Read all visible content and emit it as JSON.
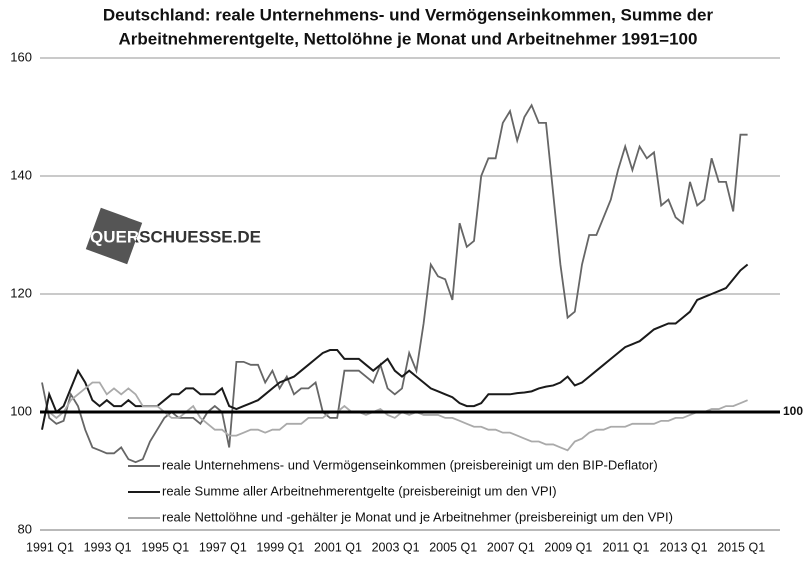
{
  "chart_data": {
    "type": "line",
    "title": [
      "Deutschland: reale Unternehmens- und Vermögenseinkommen, Summe der",
      "Arbeitnehmerentgelte, Nettolöhne je Monat und Arbeitnehmer 1991=100"
    ],
    "watermark": "QUERSCHUESSE.DE",
    "categories": [
      "1991 Q1",
      null,
      null,
      null,
      null,
      null,
      null,
      null,
      "1993 Q1",
      null,
      null,
      null,
      null,
      null,
      null,
      null,
      "1995 Q1",
      null,
      null,
      null,
      null,
      null,
      null,
      null,
      "1997 Q1",
      null,
      null,
      null,
      null,
      null,
      null,
      null,
      "1999 Q1",
      null,
      null,
      null,
      null,
      null,
      null,
      null,
      "2001 Q1",
      null,
      null,
      null,
      null,
      null,
      null,
      null,
      "2003 Q1",
      null,
      null,
      null,
      null,
      null,
      null,
      null,
      "2005 Q1",
      null,
      null,
      null,
      null,
      null,
      null,
      null,
      "2007 Q1",
      null,
      null,
      null,
      null,
      null,
      null,
      null,
      "2009 Q1",
      null,
      null,
      null,
      null,
      null,
      null,
      null,
      "2011 Q1",
      null,
      null,
      null,
      null,
      null,
      null,
      null,
      "2013 Q1",
      null,
      null,
      null,
      null,
      null,
      null,
      null,
      "2015 Q1",
      null,
      null
    ],
    "series": [
      {
        "name": "reale Unternehmens- und Vermögenseinkommen (preisbereinigt um den BIP-Deflator)",
        "color": "#666666",
        "values": [
          105,
          99,
          98,
          98.5,
          103,
          101,
          97,
          94,
          93.5,
          93,
          93,
          94,
          92,
          91.5,
          92,
          95,
          97,
          99,
          100,
          99,
          99,
          99,
          98,
          100,
          101,
          100,
          94,
          108.5,
          108.5,
          108,
          108,
          105,
          107,
          104,
          106,
          103,
          104,
          104,
          105,
          100,
          99,
          99,
          107,
          107,
          107,
          106,
          105,
          108,
          104,
          103,
          104,
          110,
          107,
          115,
          125,
          123,
          122.5,
          119,
          132,
          128,
          129,
          140,
          143,
          143,
          149,
          151,
          146,
          150,
          152,
          149,
          149,
          137,
          125,
          116,
          117,
          125,
          130,
          130,
          133,
          136,
          141,
          145,
          141,
          145,
          143,
          144,
          135,
          136,
          133,
          132,
          139,
          135,
          136,
          143,
          139,
          139,
          134,
          147,
          147
        ]
      },
      {
        "name": "reale Summe aller Arbeitnehmerentgelte (preisbereinigt um den VPI)",
        "color": "#1a1a1a",
        "values": [
          97,
          103,
          100,
          101,
          104,
          107,
          105,
          102,
          101,
          102,
          101,
          101,
          102,
          101,
          101,
          101,
          101,
          102,
          103,
          103,
          104,
          104,
          103,
          103,
          103,
          104,
          101,
          100.5,
          101,
          101.5,
          102,
          103,
          104,
          105,
          105.5,
          106,
          107,
          108,
          109,
          110,
          110.5,
          110.5,
          109,
          109,
          109,
          108,
          107,
          108,
          109,
          107,
          106,
          107,
          106,
          105,
          104,
          103.5,
          103,
          102.5,
          101.5,
          101,
          101,
          101.5,
          103,
          103,
          103,
          103,
          103.2,
          103.3,
          103.5,
          104,
          104.3,
          104.5,
          105,
          106,
          104.5,
          105,
          106,
          107,
          108,
          109,
          110,
          111,
          111.5,
          112,
          113,
          114,
          114.5,
          115,
          115,
          116,
          117,
          119,
          119.5,
          120,
          120.5,
          121,
          122.5,
          124,
          125
        ]
      },
      {
        "name": "reale Nettolöhne und -gehälter je Monat und je Arbeitnehmer (preisbereinigt um den VPI)",
        "color": "#aaaaaa",
        "values": [
          100,
          100,
          99,
          100,
          102,
          103,
          104,
          105,
          105,
          103,
          104,
          103,
          104,
          103,
          101,
          101,
          101,
          100,
          99,
          99,
          100,
          101,
          99,
          98,
          97,
          97,
          96,
          96,
          96.5,
          97,
          97,
          96.5,
          97,
          97,
          98,
          98,
          98,
          99,
          99,
          99,
          100,
          100,
          101,
          100,
          100,
          99.5,
          100,
          100.5,
          99.5,
          99,
          100,
          99.5,
          100,
          99.5,
          99.5,
          99.5,
          99,
          99,
          98.5,
          98,
          97.5,
          97.5,
          97,
          97,
          96.5,
          96.5,
          96,
          95.5,
          95,
          95,
          94.5,
          94.5,
          94,
          93.5,
          95,
          95.5,
          96.5,
          97,
          97,
          97.5,
          97.5,
          97.5,
          98,
          98,
          98,
          98,
          98.5,
          98.5,
          99,
          99,
          99.5,
          100,
          100,
          100.5,
          100.5,
          101,
          101,
          101.5,
          102
        ]
      }
    ],
    "reference_line": 100,
    "ylim": [
      80,
      160
    ],
    "yticks": [
      80,
      100,
      120,
      140,
      160
    ],
    "grid": true,
    "legend": "lower left"
  }
}
